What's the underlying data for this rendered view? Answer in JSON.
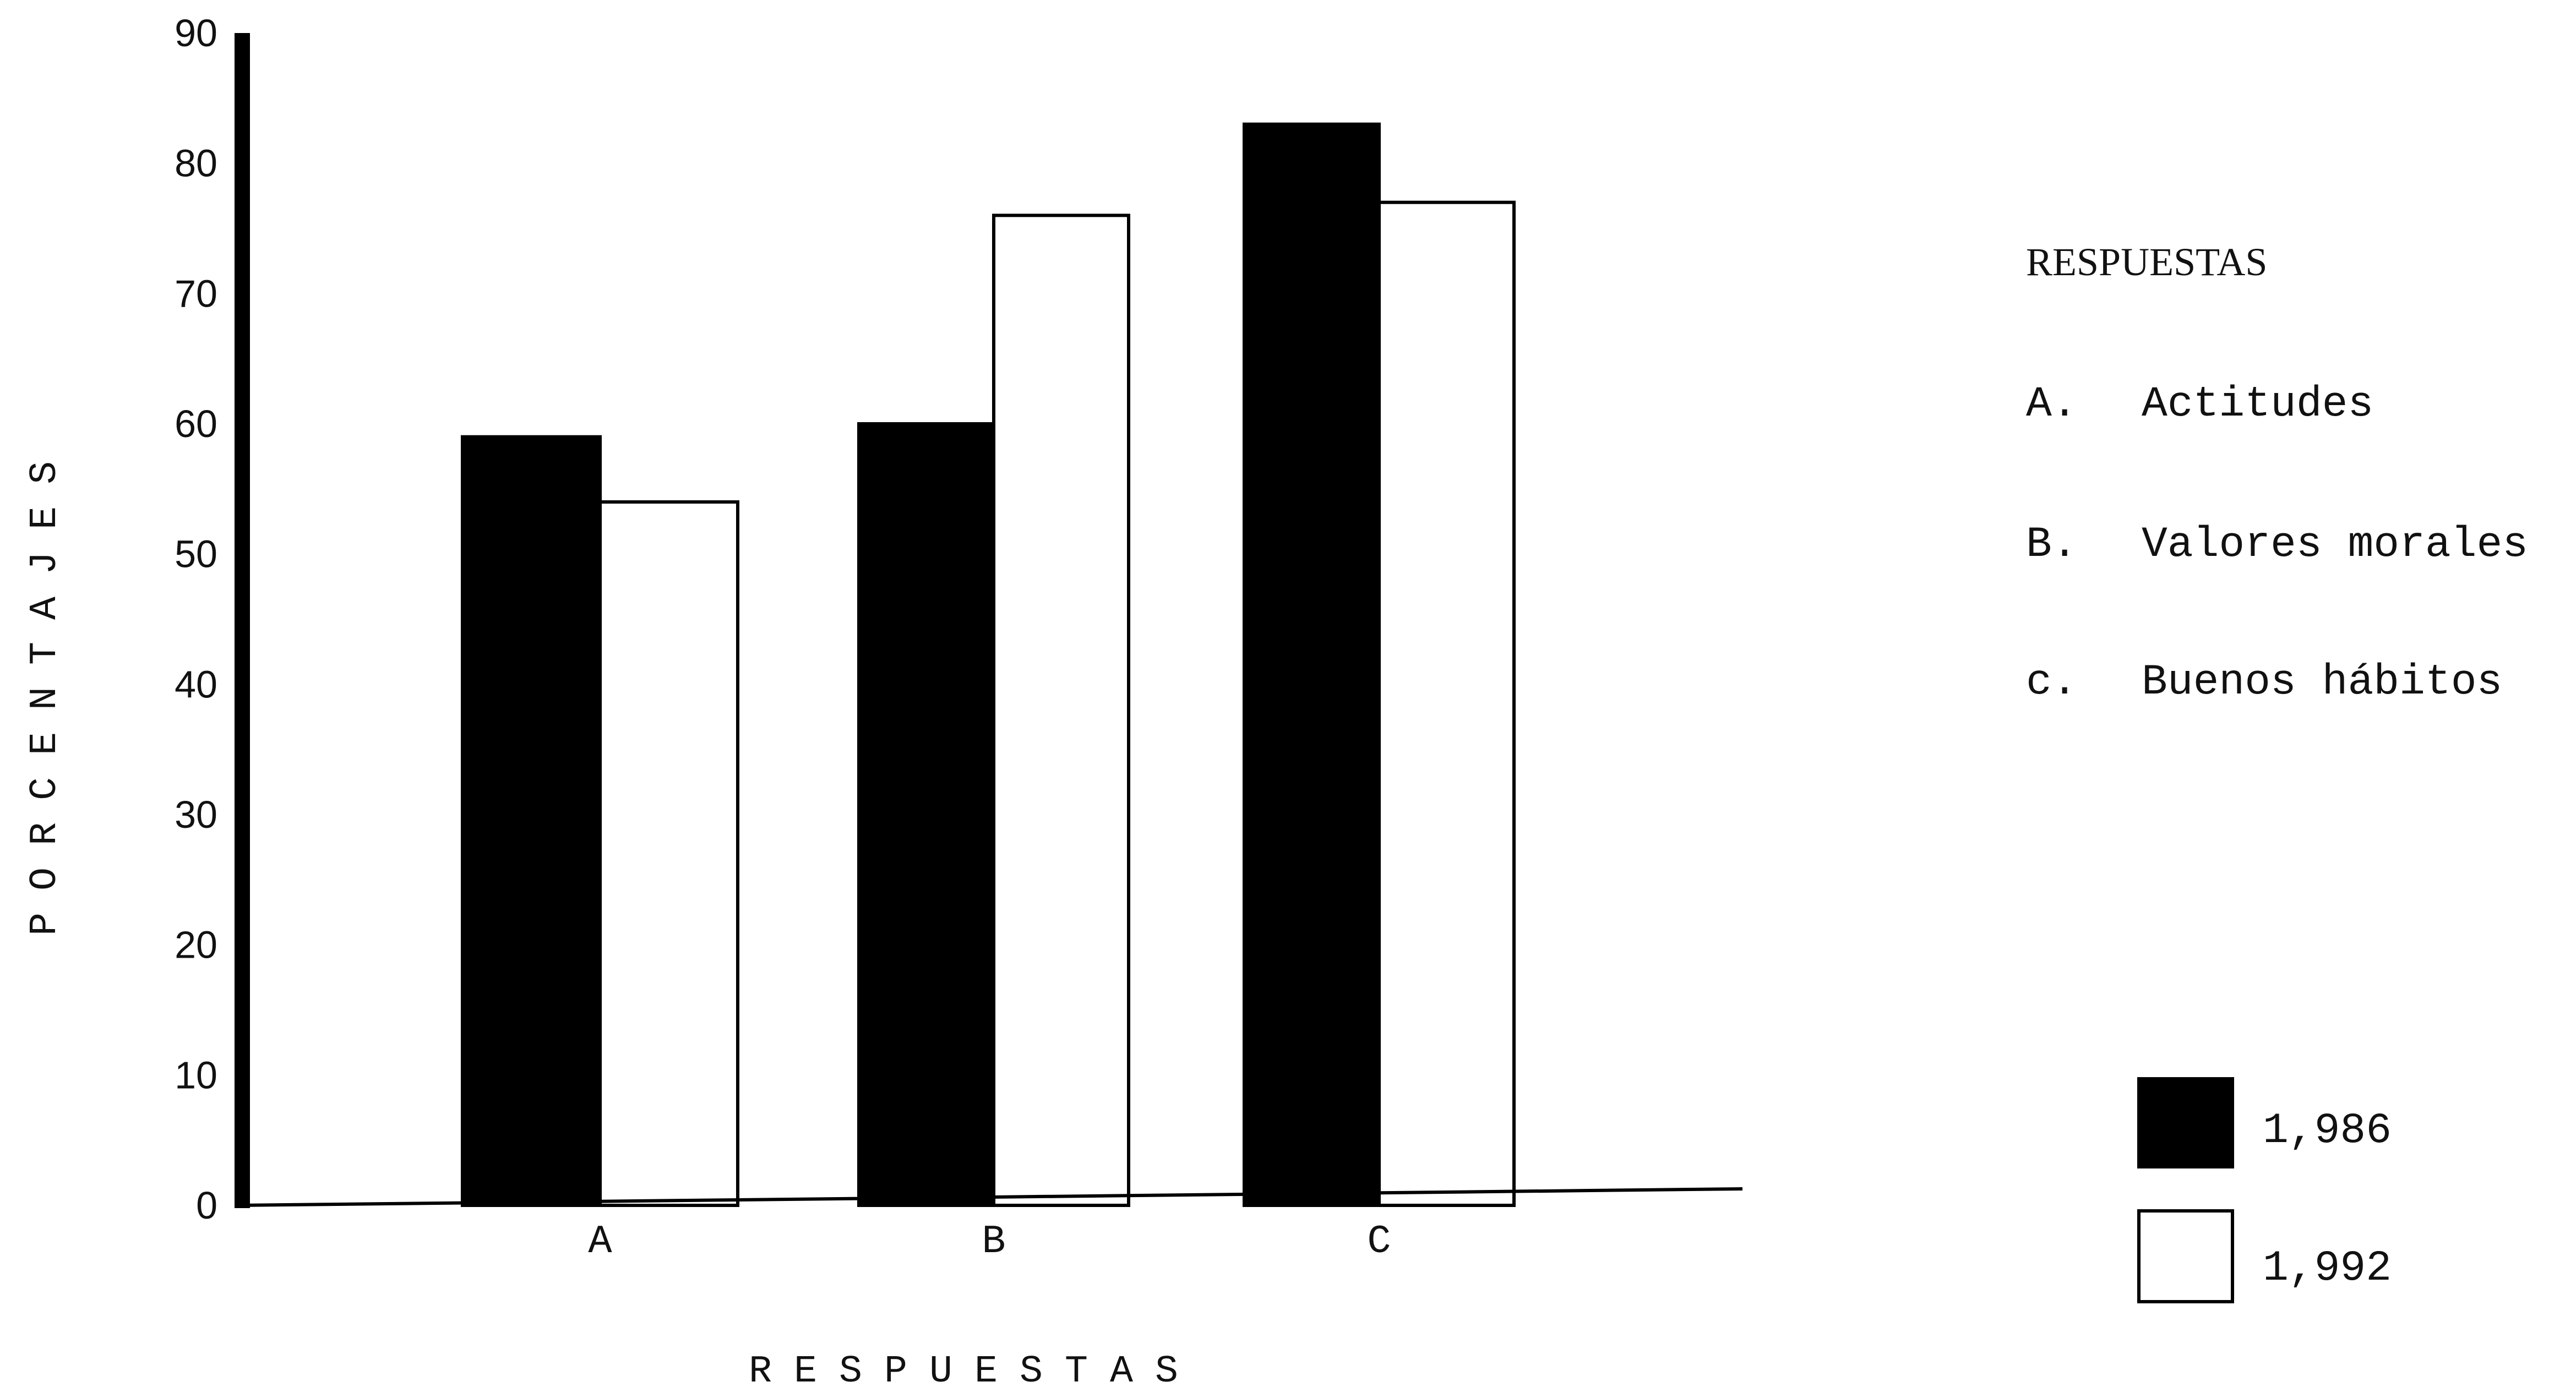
{
  "chart_data": {
    "type": "bar",
    "categories": [
      "A",
      "B",
      "C"
    ],
    "series": [
      {
        "name": "1,986",
        "values": [
          59,
          60,
          83
        ],
        "color": "#000000"
      },
      {
        "name": "1,992",
        "values": [
          54,
          76,
          77
        ],
        "color": "#ffffff"
      }
    ],
    "xlabel": "RESPUESTAS",
    "ylabel": "PORCENTAJES",
    "ylim": [
      0,
      90
    ],
    "yticks": [
      0,
      10,
      20,
      30,
      40,
      50,
      60,
      70,
      80,
      90
    ],
    "grid": false,
    "legend_placement": "right",
    "key": {
      "title": "RESPUESTAS",
      "items": [
        {
          "letter": "A.",
          "text": "Actitudes"
        },
        {
          "letter": "B.",
          "text": "Valores morales"
        },
        {
          "letter": "c.",
          "text": "Buenos hábitos"
        }
      ]
    }
  }
}
